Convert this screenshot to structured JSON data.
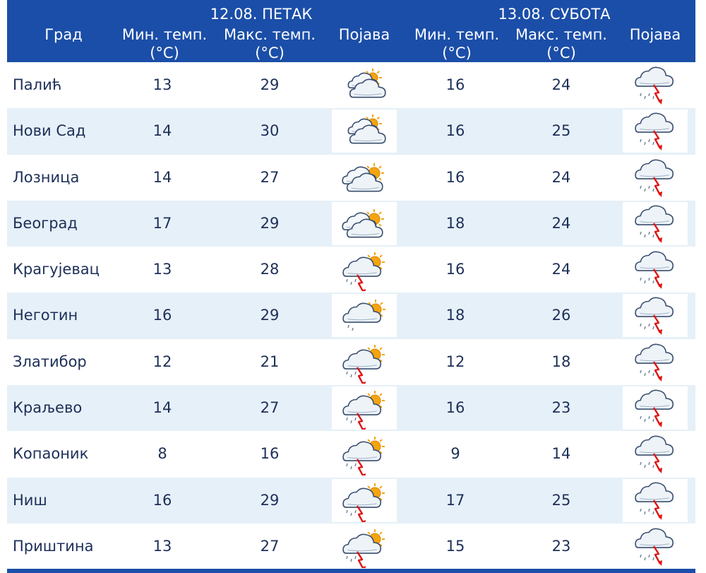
{
  "header": {
    "city_label": "Град",
    "days": [
      {
        "date": "12.08. ПЕТАК",
        "min_label": "Мин. темп.",
        "max_label": "Макс. темп.",
        "unit": "(°C)",
        "event_label": "Појава"
      },
      {
        "date": "13.08. СУБОТА",
        "min_label": "Мин. темп.",
        "max_label": "Макс. темп.",
        "unit": "(°C)",
        "event_label": "Појава"
      }
    ]
  },
  "rows": [
    {
      "city": "Палић",
      "d1": {
        "min": "13",
        "max": "29",
        "icon": "partly-cloudy-icon"
      },
      "d2": {
        "min": "16",
        "max": "24",
        "icon": "thunderstorm-rain-icon"
      }
    },
    {
      "city": "Нови Сад",
      "d1": {
        "min": "14",
        "max": "30",
        "icon": "partly-cloudy-icon"
      },
      "d2": {
        "min": "16",
        "max": "25",
        "icon": "thunderstorm-rain-icon"
      }
    },
    {
      "city": "Лозница",
      "d1": {
        "min": "14",
        "max": "27",
        "icon": "mostly-cloudy-icon"
      },
      "d2": {
        "min": "16",
        "max": "24",
        "icon": "thunderstorm-rain-icon"
      }
    },
    {
      "city": "Београд",
      "d1": {
        "min": "17",
        "max": "29",
        "icon": "mostly-cloudy-icon"
      },
      "d2": {
        "min": "18",
        "max": "24",
        "icon": "thunderstorm-rain-icon"
      }
    },
    {
      "city": "Крагујевац",
      "d1": {
        "min": "13",
        "max": "28",
        "icon": "sun-thunderstorm-icon"
      },
      "d2": {
        "min": "16",
        "max": "24",
        "icon": "thunderstorm-rain-icon"
      }
    },
    {
      "city": "Неготин",
      "d1": {
        "min": "16",
        "max": "29",
        "icon": "cloudy-sun-drizzle-icon"
      },
      "d2": {
        "min": "18",
        "max": "26",
        "icon": "thunderstorm-rain-icon"
      }
    },
    {
      "city": "Златибор",
      "d1": {
        "min": "12",
        "max": "21",
        "icon": "sun-thunderstorm-icon"
      },
      "d2": {
        "min": "12",
        "max": "18",
        "icon": "thunderstorm-rain-icon"
      }
    },
    {
      "city": "Краљево",
      "d1": {
        "min": "14",
        "max": "27",
        "icon": "sun-thunderstorm-icon"
      },
      "d2": {
        "min": "16",
        "max": "23",
        "icon": "thunderstorm-rain-icon"
      }
    },
    {
      "city": "Копаоник",
      "d1": {
        "min": "8",
        "max": "16",
        "icon": "sun-thunderstorm-icon"
      },
      "d2": {
        "min": "9",
        "max": "14",
        "icon": "thunderstorm-rain-icon"
      }
    },
    {
      "city": "Ниш",
      "d1": {
        "min": "16",
        "max": "29",
        "icon": "sun-thunderstorm-icon"
      },
      "d2": {
        "min": "17",
        "max": "25",
        "icon": "thunderstorm-rain-icon"
      }
    },
    {
      "city": "Приштина",
      "d1": {
        "min": "13",
        "max": "27",
        "icon": "sun-thunderstorm-icon"
      },
      "d2": {
        "min": "15",
        "max": "23",
        "icon": "thunderstorm-rain-icon"
      }
    }
  ],
  "colors": {
    "header_bg": "#1b4ea8",
    "stripe_bg": "#e6f0f8",
    "text": "#1d2f58",
    "sun": "#f4a40e",
    "cloud_stroke": "#3a4f6f",
    "lightning": "#e01515"
  }
}
